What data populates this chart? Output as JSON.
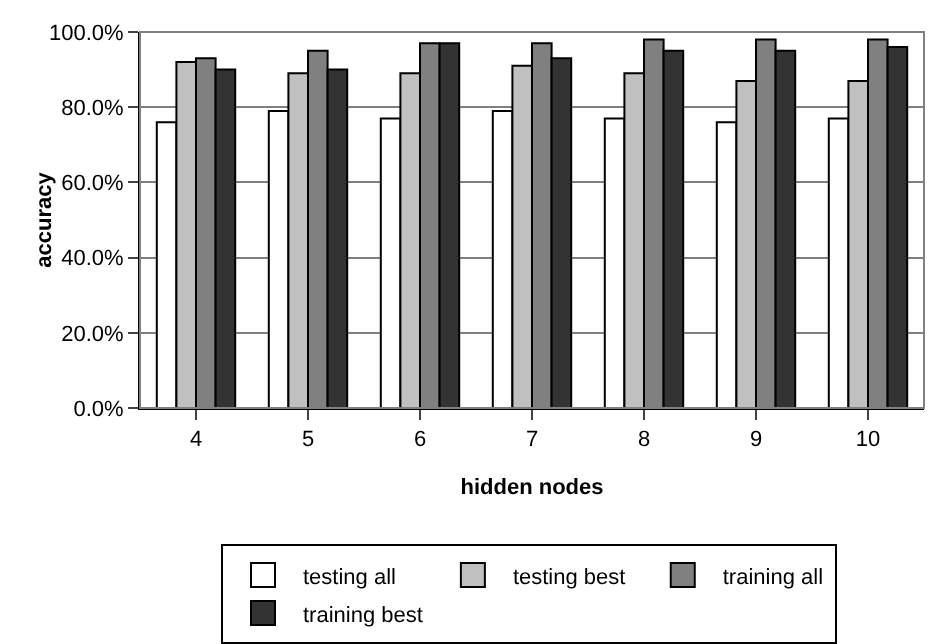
{
  "chart_data": {
    "type": "bar",
    "xlabel": "hidden nodes",
    "ylabel": "accuracy",
    "categories": [
      "4",
      "5",
      "6",
      "7",
      "8",
      "9",
      "10"
    ],
    "series": [
      {
        "name": "testing all",
        "color": "#ffffff",
        "values": [
          76,
          79,
          77,
          79,
          77,
          76,
          77
        ]
      },
      {
        "name": "testing best",
        "color": "#c0c0c0",
        "values": [
          92,
          89,
          89,
          91,
          89,
          87,
          87
        ]
      },
      {
        "name": "training all",
        "color": "#808080",
        "values": [
          93,
          95,
          97,
          97,
          98,
          98,
          98
        ]
      },
      {
        "name": "training best",
        "color": "#333333",
        "values": [
          90,
          90,
          97,
          93,
          95,
          95,
          96
        ]
      }
    ],
    "ylim": [
      0,
      100
    ],
    "yticks": [
      {
        "value": 0,
        "label": "0.0%"
      },
      {
        "value": 20,
        "label": "20.0%"
      },
      {
        "value": 40,
        "label": "40.0%"
      },
      {
        "value": 60,
        "label": "60.0%"
      },
      {
        "value": 80,
        "label": "80.0%"
      },
      {
        "value": 100,
        "label": "100.0%"
      }
    ],
    "grid": "y",
    "legend": "bottom"
  }
}
